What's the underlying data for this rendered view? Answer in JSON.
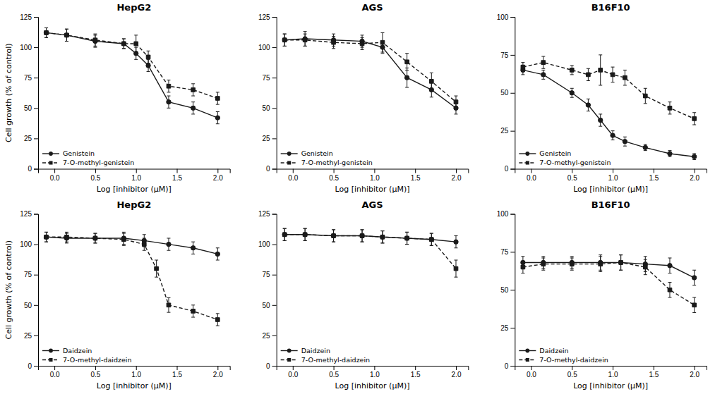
{
  "chart_data": [
    {
      "type": "line",
      "title": "HepG2",
      "x_label": "Log [inhibitor (μM)]",
      "y_label": "Cell growth (% of control)",
      "xlim": [
        -0.2,
        2.15
      ],
      "xticks": [
        {
          "value": 0,
          "label": "0.0"
        },
        0.5,
        {
          "value": 1,
          "label": "1.0"
        },
        1.5,
        {
          "value": 2,
          "label": "2.0"
        }
      ],
      "ylim": [
        0,
        125
      ],
      "yticks": [
        0,
        25,
        50,
        75,
        100,
        125
      ],
      "grid": false,
      "legend": "lower left",
      "series": [
        {
          "name": "Genistein",
          "color": "#1a1a1a",
          "marker": "circle",
          "line_style": "solid",
          "x": [
            -0.1,
            0.15,
            0.5,
            0.85,
            1.0,
            1.15,
            1.4,
            1.7,
            2.0
          ],
          "values": [
            112,
            110,
            105,
            103,
            95,
            85,
            55,
            50,
            42
          ],
          "errors": [
            4,
            5,
            5,
            4,
            5,
            5,
            5,
            5,
            5
          ]
        },
        {
          "name": "7-O-methyl-genistein",
          "color": "#1a1a1a",
          "marker": "square",
          "line_style": "dashed",
          "x": [
            -0.1,
            0.15,
            0.5,
            0.85,
            1.0,
            1.15,
            1.4,
            1.7,
            2.0
          ],
          "values": [
            112,
            110,
            106,
            103,
            103,
            92,
            68,
            65,
            58
          ],
          "errors": [
            4,
            5,
            5,
            4,
            7,
            5,
            5,
            5,
            5
          ]
        }
      ]
    },
    {
      "type": "line",
      "title": "AGS",
      "x_label": "Log [inhibitor (μM)]",
      "xlim": [
        -0.2,
        2.15
      ],
      "xticks": [
        {
          "value": 0,
          "label": "0.0"
        },
        0.5,
        {
          "value": 1,
          "label": "1.0"
        },
        1.5,
        {
          "value": 2,
          "label": "2.0"
        }
      ],
      "ylim": [
        0,
        125
      ],
      "yticks": [
        0,
        25,
        50,
        75,
        100,
        125
      ],
      "grid": false,
      "legend": "lower left",
      "series": [
        {
          "name": "Genistein",
          "color": "#1a1a1a",
          "marker": "circle",
          "line_style": "solid",
          "x": [
            -0.1,
            0.15,
            0.5,
            0.85,
            1.1,
            1.4,
            1.7,
            2.0
          ],
          "values": [
            106,
            107,
            106,
            105,
            100,
            75,
            65,
            50
          ],
          "errors": [
            5,
            6,
            5,
            5,
            5,
            8,
            6,
            5
          ]
        },
        {
          "name": "7-O-methyl-genistein",
          "color": "#1a1a1a",
          "marker": "square",
          "line_style": "dashed",
          "x": [
            -0.1,
            0.15,
            0.5,
            0.85,
            1.1,
            1.4,
            1.7,
            2.0
          ],
          "values": [
            106,
            106,
            104,
            103,
            104,
            88,
            72,
            55
          ],
          "errors": [
            5,
            5,
            5,
            5,
            8,
            7,
            7,
            5
          ]
        }
      ]
    },
    {
      "type": "line",
      "title": "B16F10",
      "x_label": "Log [inhibitor (μM)]",
      "xlim": [
        -0.2,
        2.15
      ],
      "xticks": [
        {
          "value": 0,
          "label": "0.0"
        },
        0.5,
        {
          "value": 1,
          "label": "1.0"
        },
        1.5,
        {
          "value": 2,
          "label": "2.0"
        }
      ],
      "ylim": [
        0,
        100
      ],
      "yticks": [
        0,
        25,
        50,
        75,
        100
      ],
      "grid": false,
      "legend": "lower left",
      "series": [
        {
          "name": "Genistein",
          "color": "#1a1a1a",
          "marker": "circle",
          "line_style": "solid",
          "x": [
            -0.1,
            0.15,
            0.5,
            0.7,
            0.85,
            1.0,
            1.15,
            1.4,
            1.7,
            2.0
          ],
          "values": [
            65,
            62,
            50,
            42,
            32,
            22,
            18,
            14,
            10,
            8
          ],
          "errors": [
            3,
            3,
            3,
            4,
            4,
            3,
            3,
            2,
            2,
            2
          ]
        },
        {
          "name": "7-O-methyl-genistein",
          "color": "#1a1a1a",
          "marker": "square",
          "line_style": "dashed",
          "x": [
            -0.1,
            0.15,
            0.5,
            0.7,
            0.85,
            1.0,
            1.15,
            1.4,
            1.7,
            2.0
          ],
          "values": [
            67,
            70,
            65,
            62,
            65,
            62,
            60,
            48,
            40,
            33
          ],
          "errors": [
            3,
            4,
            3,
            4,
            10,
            5,
            5,
            5,
            4,
            4
          ]
        }
      ]
    },
    {
      "type": "line",
      "title": "HepG2",
      "x_label": "Log [inhibitor (μM)]",
      "y_label": "Cell growth (% of control)",
      "xlim": [
        -0.2,
        2.15
      ],
      "xticks": [
        {
          "value": 0,
          "label": "0.0"
        },
        0.5,
        {
          "value": 1,
          "label": "1.0"
        },
        1.5,
        {
          "value": 2,
          "label": "2.0"
        }
      ],
      "ylim": [
        0,
        125
      ],
      "yticks": [
        0,
        25,
        50,
        75,
        100,
        125
      ],
      "grid": false,
      "legend": "lower left",
      "series": [
        {
          "name": "Daidzein",
          "color": "#1a1a1a",
          "marker": "circle",
          "line_style": "solid",
          "x": [
            -0.1,
            0.15,
            0.5,
            0.85,
            1.1,
            1.4,
            1.7,
            2.0
          ],
          "values": [
            106,
            105,
            105,
            105,
            103,
            100,
            97,
            92
          ],
          "errors": [
            4,
            4,
            4,
            5,
            5,
            5,
            5,
            5
          ]
        },
        {
          "name": "7-O-methyl-daidzein",
          "color": "#1a1a1a",
          "marker": "square",
          "line_style": "dashed",
          "x": [
            -0.1,
            0.15,
            0.5,
            0.85,
            1.1,
            1.25,
            1.4,
            1.7,
            2.0
          ],
          "values": [
            106,
            106,
            105,
            104,
            100,
            80,
            50,
            45,
            38
          ],
          "errors": [
            4,
            4,
            4,
            5,
            5,
            7,
            6,
            5,
            5
          ]
        }
      ]
    },
    {
      "type": "line",
      "title": "AGS",
      "x_label": "Log [inhibitor (μM)]",
      "xlim": [
        -0.2,
        2.15
      ],
      "xticks": [
        {
          "value": 0,
          "label": "0.0"
        },
        0.5,
        {
          "value": 1,
          "label": "1.0"
        },
        1.5,
        {
          "value": 2,
          "label": "2.0"
        }
      ],
      "ylim": [
        0,
        125
      ],
      "yticks": [
        0,
        25,
        50,
        75,
        100,
        125
      ],
      "grid": false,
      "legend": "lower left",
      "series": [
        {
          "name": "Daidzein",
          "color": "#1a1a1a",
          "marker": "circle",
          "line_style": "solid",
          "x": [
            -0.1,
            0.15,
            0.5,
            0.85,
            1.1,
            1.4,
            1.7,
            2.0
          ],
          "values": [
            108,
            108,
            107,
            107,
            106,
            105,
            104,
            102
          ],
          "errors": [
            5,
            5,
            5,
            5,
            5,
            5,
            5,
            5
          ]
        },
        {
          "name": "7-O-methyl-daidzein",
          "color": "#1a1a1a",
          "marker": "square",
          "line_style": "dashed",
          "x": [
            -0.1,
            0.15,
            0.5,
            0.85,
            1.1,
            1.4,
            1.7,
            2.0
          ],
          "values": [
            108,
            108,
            107,
            107,
            106,
            105,
            104,
            80
          ],
          "errors": [
            5,
            5,
            5,
            5,
            5,
            5,
            5,
            7
          ]
        }
      ]
    },
    {
      "type": "line",
      "title": "B16F10",
      "x_label": "Log [inhibitor (μM)]",
      "xlim": [
        -0.2,
        2.15
      ],
      "xticks": [
        {
          "value": 0,
          "label": "0.0"
        },
        0.5,
        {
          "value": 1,
          "label": "1.0"
        },
        1.5,
        {
          "value": 2,
          "label": "2.0"
        }
      ],
      "ylim": [
        0,
        100
      ],
      "yticks": [
        0,
        25,
        50,
        75,
        100
      ],
      "grid": false,
      "legend": "lower left",
      "series": [
        {
          "name": "Daidzein",
          "color": "#1a1a1a",
          "marker": "circle",
          "line_style": "solid",
          "x": [
            -0.1,
            0.15,
            0.5,
            0.85,
            1.1,
            1.4,
            1.7,
            2.0
          ],
          "values": [
            68,
            68,
            68,
            68,
            68,
            67,
            66,
            58
          ],
          "errors": [
            4,
            4,
            4,
            5,
            5,
            5,
            5,
            5
          ]
        },
        {
          "name": "7-O-methyl-daidzein",
          "color": "#1a1a1a",
          "marker": "square",
          "line_style": "dashed",
          "x": [
            -0.1,
            0.15,
            0.5,
            0.85,
            1.1,
            1.4,
            1.7,
            2.0
          ],
          "values": [
            65,
            67,
            67,
            67,
            68,
            65,
            50,
            40
          ],
          "errors": [
            4,
            4,
            4,
            5,
            5,
            5,
            5,
            5
          ]
        }
      ]
    }
  ]
}
